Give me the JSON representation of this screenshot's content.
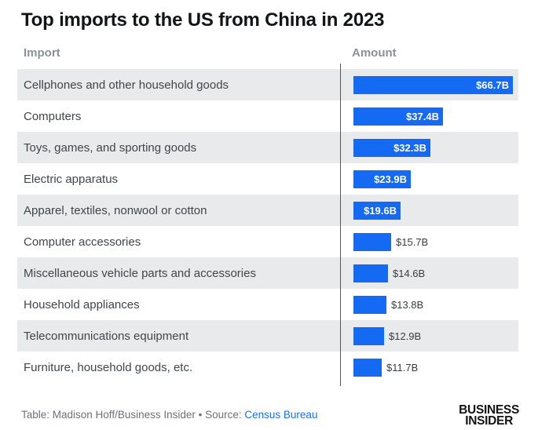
{
  "page": {
    "title": "Top imports to the US from China in 2023"
  },
  "table": {
    "col_import": "Import",
    "col_amount": "Amount"
  },
  "chart_data": {
    "type": "bar",
    "orientation": "horizontal",
    "title": "Top imports to the US from China in 2023",
    "categories": [
      "Cellphones and other household goods",
      "Computers",
      "Toys, games, and sporting goods",
      "Electric apparatus",
      "Apparel, textiles, nonwool or cotton",
      "Computer accessories",
      "Miscellaneous vehicle parts and accessories",
      "Household appliances",
      "Telecommunications equipment",
      "Furniture, household goods, etc."
    ],
    "values": [
      66.7,
      37.4,
      32.3,
      23.9,
      19.6,
      15.7,
      14.6,
      13.8,
      12.9,
      11.7
    ],
    "value_labels": [
      "$66.7B",
      "$37.4B",
      "$32.3B",
      "$23.9B",
      "$19.6B",
      "$15.7B",
      "$14.6B",
      "$13.8B",
      "$12.9B",
      "$11.7B"
    ],
    "xlim": [
      0,
      66.7
    ],
    "bar_color": "#156af3",
    "legend": "none",
    "grid": "off"
  },
  "footer": {
    "credit": "Table: Madison Hoff/Business Insider • Source:",
    "source_link": "Census Bureau"
  },
  "logo": {
    "line1": "BUSINESS",
    "line2": "INSIDER"
  },
  "colors": {
    "bar": "#156af3",
    "row_alt_background": "#e9eaec",
    "axis_line": "#55585c",
    "column_header_text": "#8a9299",
    "row_label_text": "#40464c",
    "title_text": "#121415",
    "footer_text": "#6e7276",
    "link": "#1a73e8",
    "value_inside_text": "#ffffff",
    "value_outside_text": "#383d42"
  }
}
